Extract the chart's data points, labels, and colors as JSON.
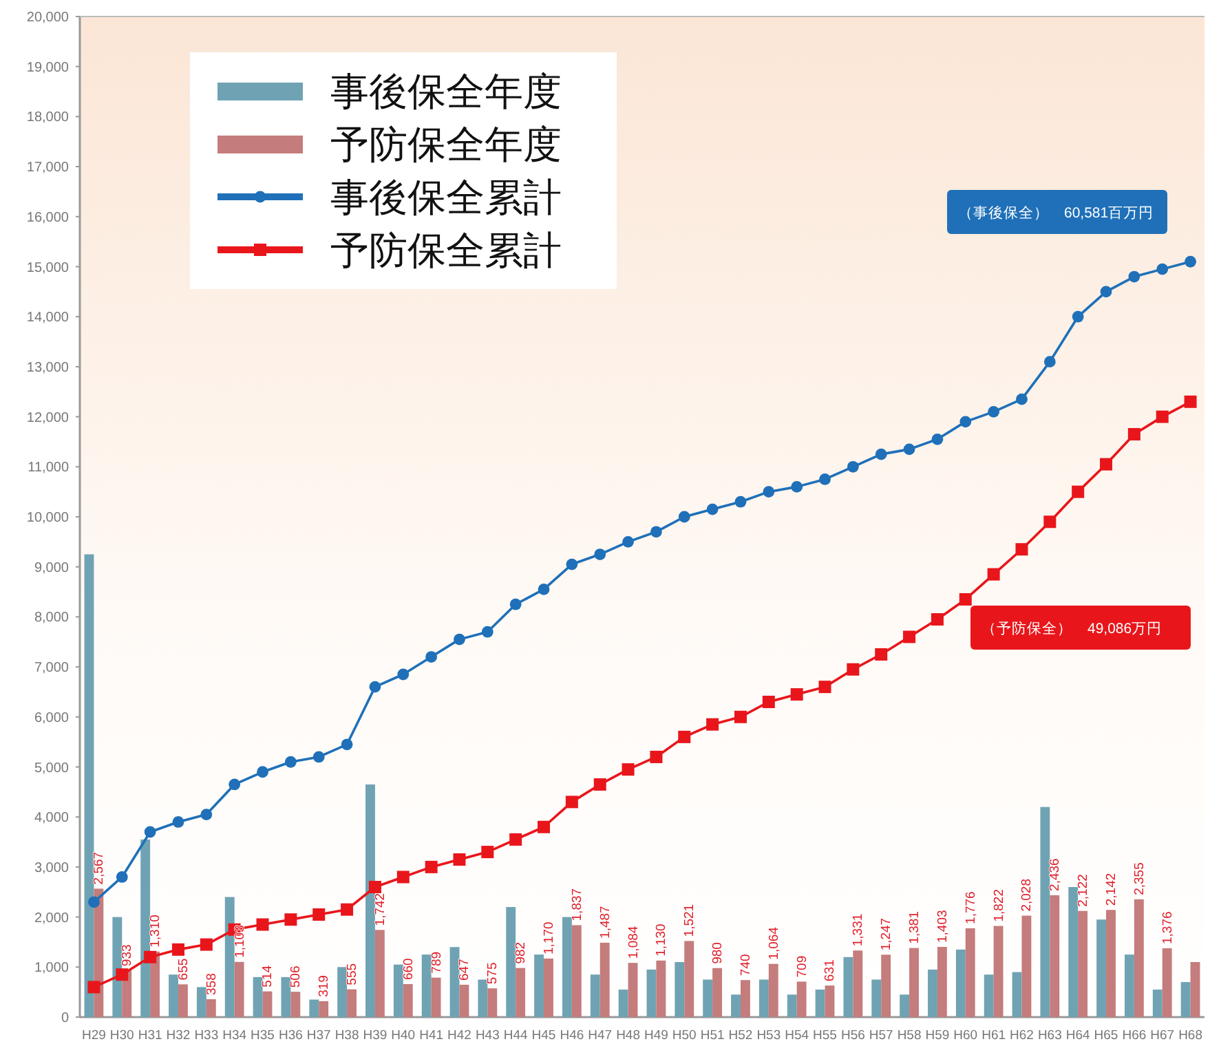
{
  "chart_data": {
    "type": "bar",
    "categories": [
      "H29",
      "H30",
      "H31",
      "H32",
      "H33",
      "H34",
      "H35",
      "H36",
      "H37",
      "H38",
      "H39",
      "H40",
      "H41",
      "H42",
      "H43",
      "H44",
      "H45",
      "H46",
      "H47",
      "H48",
      "H49",
      "H50",
      "H51",
      "H52",
      "H53",
      "H54",
      "H55",
      "H56",
      "H57",
      "H58",
      "H59",
      "H60",
      "H61",
      "H62",
      "H63",
      "H64",
      "H65",
      "H66",
      "H67",
      "H68"
    ],
    "series": [
      {
        "name": "事後保全年度",
        "color": "#6fa3b3",
        "values": [
          9250,
          2000,
          3550,
          850,
          600,
          2400,
          800,
          800,
          350,
          1000,
          4650,
          1050,
          1250,
          1400,
          750,
          2200,
          1250,
          2000,
          850,
          550,
          950,
          1100,
          750,
          450,
          750,
          450,
          550,
          1200,
          750,
          450,
          950,
          1350,
          850,
          900,
          4200,
          2600,
          1950,
          1250,
          550,
          700
        ]
      },
      {
        "name": "予防保全年度",
        "color": "#c47c7c",
        "values": [
          2567,
          933,
          1310,
          655,
          358,
          1103,
          514,
          506,
          319,
          555,
          1742,
          660,
          789,
          647,
          575,
          982,
          1170,
          1837,
          1487,
          1084,
          1130,
          1521,
          980,
          740,
          1064,
          709,
          631,
          1331,
          1247,
          1381,
          1403,
          1776,
          1822,
          2028,
          2436,
          2122,
          2142,
          2355,
          1376,
          1100
        ],
        "value_labels": [
          "2,567",
          "933",
          "1,310",
          "655",
          "358",
          "1,103",
          "514",
          "506",
          "319",
          "555",
          "1,742",
          "660",
          "789",
          "647",
          "575",
          "982",
          "1,170",
          "1,837",
          "1,487",
          "1,084",
          "1,130",
          "1,521",
          "980",
          "740",
          "1,064",
          "709",
          "631",
          "1,331",
          "1,247",
          "1,381",
          "1,403",
          "1,776",
          "1,822",
          "2,028",
          "2,436",
          "2,122",
          "2,142",
          "2,355",
          "1,376",
          null
        ]
      },
      {
        "name": "事後保全累計",
        "type": "line",
        "marker": "circle",
        "color": "#1f70b8",
        "values": [
          2300,
          2800,
          3700,
          3900,
          4050,
          4650,
          4900,
          5100,
          5200,
          5450,
          6600,
          6850,
          7200,
          7550,
          7700,
          8250,
          8550,
          9050,
          9250,
          9500,
          9700,
          10000,
          10150,
          10300,
          10500,
          10600,
          10750,
          11000,
          11250,
          11350,
          11550,
          11900,
          12100,
          12350,
          13100,
          14000,
          14500,
          14800,
          14950,
          15100
        ]
      },
      {
        "name": "予防保全累計",
        "type": "line",
        "marker": "square",
        "color": "#e8161b",
        "values": [
          600,
          850,
          1200,
          1350,
          1450,
          1750,
          1850,
          1950,
          2050,
          2150,
          2600,
          2800,
          3000,
          3150,
          3300,
          3550,
          3800,
          4300,
          4650,
          4950,
          5200,
          5600,
          5850,
          6000,
          6300,
          6450,
          6600,
          6950,
          7250,
          7600,
          7950,
          8350,
          8850,
          9350,
          9900,
          10500,
          11050,
          11650,
          12000,
          12300
        ]
      }
    ],
    "ylim": [
      0,
      20000
    ],
    "yticks": [
      0,
      {
        "value": 1000,
        "label": "1,000"
      },
      {
        "value": 2000,
        "label": "2,000"
      },
      {
        "value": 3000,
        "label": "3,000"
      },
      {
        "value": 4000,
        "label": "4,000"
      },
      {
        "value": 5000,
        "label": "5,000"
      },
      {
        "value": 6000,
        "label": "6,000"
      },
      {
        "value": 7000,
        "label": "7,000"
      },
      {
        "value": 8000,
        "label": "8,000"
      },
      {
        "value": 9000,
        "label": "9,000"
      },
      {
        "value": 10000,
        "label": "10,000"
      },
      {
        "value": 11000,
        "label": "11,000"
      },
      {
        "value": 12000,
        "label": "12,000"
      },
      {
        "value": 13000,
        "label": "13,000"
      },
      {
        "value": 14000,
        "label": "14,000"
      },
      {
        "value": 15000,
        "label": "15,000"
      },
      {
        "value": 16000,
        "label": "16,000"
      },
      {
        "value": 17000,
        "label": "17,000"
      },
      {
        "value": 18000,
        "label": "18,000"
      },
      {
        "value": 19000,
        "label": "19,000"
      },
      {
        "value": 20000,
        "label": "20,000"
      }
    ],
    "annotations": [
      "（事後保全）　60,581百万円",
      "（予防保全）　49,086万円"
    ],
    "legend": "top left"
  }
}
